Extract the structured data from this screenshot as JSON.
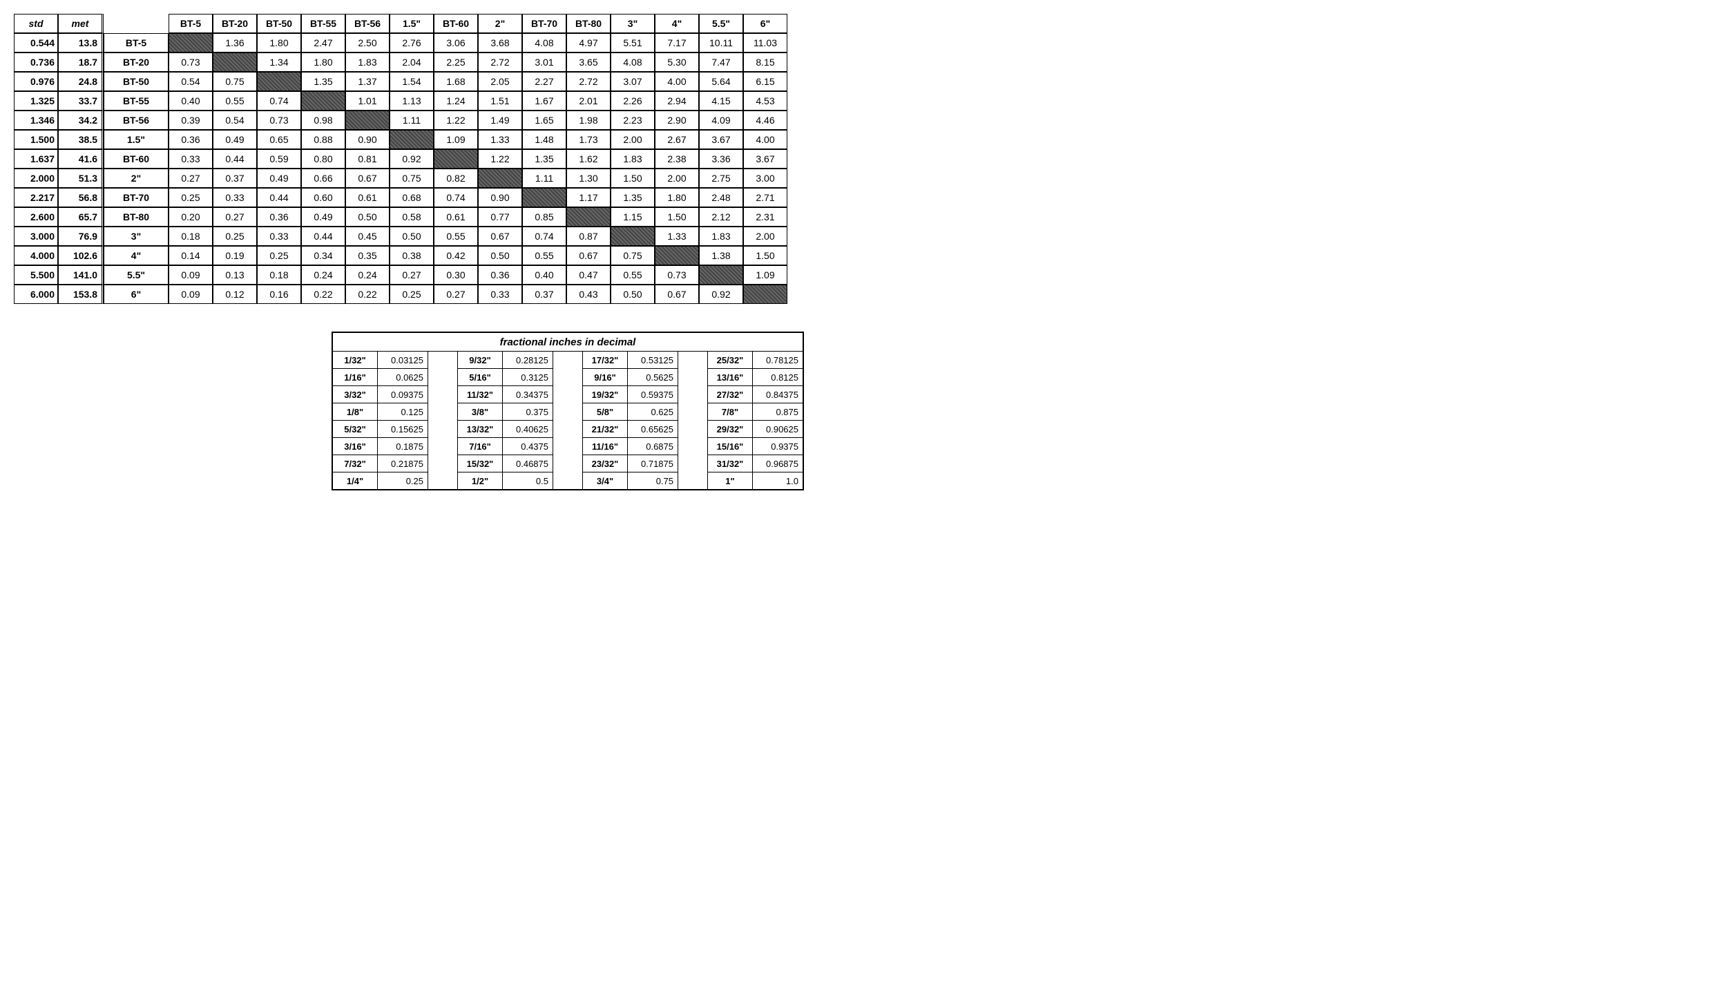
{
  "main": {
    "headers": {
      "std": "std",
      "met": "met",
      "cols": [
        "BT-5",
        "BT-20",
        "BT-50",
        "BT-55",
        "BT-56",
        "1.5\"",
        "BT-60",
        "2\"",
        "BT-70",
        "BT-80",
        "3\"",
        "4\"",
        "5.5\"",
        "6\""
      ]
    },
    "rows": [
      {
        "std": "0.544",
        "met": "13.8",
        "label": "BT-5",
        "vals": [
          null,
          "1.36",
          "1.80",
          "2.47",
          "2.50",
          "2.76",
          "3.06",
          "3.68",
          "4.08",
          "4.97",
          "5.51",
          "7.17",
          "10.11",
          "11.03"
        ]
      },
      {
        "std": "0.736",
        "met": "18.7",
        "label": "BT-20",
        "vals": [
          "0.73",
          null,
          "1.34",
          "1.80",
          "1.83",
          "2.04",
          "2.25",
          "2.72",
          "3.01",
          "3.65",
          "4.08",
          "5.30",
          "7.47",
          "8.15"
        ]
      },
      {
        "std": "0.976",
        "met": "24.8",
        "label": "BT-50",
        "vals": [
          "0.54",
          "0.75",
          null,
          "1.35",
          "1.37",
          "1.54",
          "1.68",
          "2.05",
          "2.27",
          "2.72",
          "3.07",
          "4.00",
          "5.64",
          "6.15"
        ]
      },
      {
        "std": "1.325",
        "met": "33.7",
        "label": "BT-55",
        "vals": [
          "0.40",
          "0.55",
          "0.74",
          null,
          "1.01",
          "1.13",
          "1.24",
          "1.51",
          "1.67",
          "2.01",
          "2.26",
          "2.94",
          "4.15",
          "4.53"
        ]
      },
      {
        "std": "1.346",
        "met": "34.2",
        "label": "BT-56",
        "vals": [
          "0.39",
          "0.54",
          "0.73",
          "0.98",
          null,
          "1.11",
          "1.22",
          "1.49",
          "1.65",
          "1.98",
          "2.23",
          "2.90",
          "4.09",
          "4.46"
        ]
      },
      {
        "std": "1.500",
        "met": "38.5",
        "label": "1.5\"",
        "vals": [
          "0.36",
          "0.49",
          "0.65",
          "0.88",
          "0.90",
          null,
          "1.09",
          "1.33",
          "1.48",
          "1.73",
          "2.00",
          "2.67",
          "3.67",
          "4.00"
        ]
      },
      {
        "std": "1.637",
        "met": "41.6",
        "label": "BT-60",
        "vals": [
          "0.33",
          "0.44",
          "0.59",
          "0.80",
          "0.81",
          "0.92",
          null,
          "1.22",
          "1.35",
          "1.62",
          "1.83",
          "2.38",
          "3.36",
          "3.67"
        ]
      },
      {
        "std": "2.000",
        "met": "51.3",
        "label": "2\"",
        "vals": [
          "0.27",
          "0.37",
          "0.49",
          "0.66",
          "0.67",
          "0.75",
          "0.82",
          null,
          "1.11",
          "1.30",
          "1.50",
          "2.00",
          "2.75",
          "3.00"
        ]
      },
      {
        "std": "2.217",
        "met": "56.8",
        "label": "BT-70",
        "vals": [
          "0.25",
          "0.33",
          "0.44",
          "0.60",
          "0.61",
          "0.68",
          "0.74",
          "0.90",
          null,
          "1.17",
          "1.35",
          "1.80",
          "2.48",
          "2.71"
        ]
      },
      {
        "std": "2.600",
        "met": "65.7",
        "label": "BT-80",
        "vals": [
          "0.20",
          "0.27",
          "0.36",
          "0.49",
          "0.50",
          "0.58",
          "0.61",
          "0.77",
          "0.85",
          null,
          "1.15",
          "1.50",
          "2.12",
          "2.31"
        ]
      },
      {
        "std": "3.000",
        "met": "76.9",
        "label": "3\"",
        "vals": [
          "0.18",
          "0.25",
          "0.33",
          "0.44",
          "0.45",
          "0.50",
          "0.55",
          "0.67",
          "0.74",
          "0.87",
          null,
          "1.33",
          "1.83",
          "2.00"
        ]
      },
      {
        "std": "4.000",
        "met": "102.6",
        "label": "4\"",
        "vals": [
          "0.14",
          "0.19",
          "0.25",
          "0.34",
          "0.35",
          "0.38",
          "0.42",
          "0.50",
          "0.55",
          "0.67",
          "0.75",
          null,
          "1.38",
          "1.50"
        ]
      },
      {
        "std": "5.500",
        "met": "141.0",
        "label": "5.5\"",
        "vals": [
          "0.09",
          "0.13",
          "0.18",
          "0.24",
          "0.24",
          "0.27",
          "0.30",
          "0.36",
          "0.40",
          "0.47",
          "0.55",
          "0.73",
          null,
          "1.09"
        ]
      },
      {
        "std": "6.000",
        "met": "153.8",
        "label": "6\"",
        "vals": [
          "0.09",
          "0.12",
          "0.16",
          "0.22",
          "0.22",
          "0.25",
          "0.27",
          "0.33",
          "0.37",
          "0.43",
          "0.50",
          "0.67",
          "0.92",
          null
        ]
      }
    ],
    "style": {
      "diag_color": "#555555",
      "border_color": "#000000",
      "background": "#ffffff",
      "font_size": 14
    }
  },
  "fractions": {
    "title": "fractional inches in decimal",
    "groups": [
      [
        {
          "f": "1/32\"",
          "d": "0.03125"
        },
        {
          "f": "1/16\"",
          "d": "0.0625"
        },
        {
          "f": "3/32\"",
          "d": "0.09375"
        },
        {
          "f": "1/8\"",
          "d": "0.125"
        },
        {
          "f": "5/32\"",
          "d": "0.15625"
        },
        {
          "f": "3/16\"",
          "d": "0.1875"
        },
        {
          "f": "7/32\"",
          "d": "0.21875"
        },
        {
          "f": "1/4\"",
          "d": "0.25"
        }
      ],
      [
        {
          "f": "9/32\"",
          "d": "0.28125"
        },
        {
          "f": "5/16\"",
          "d": "0.3125"
        },
        {
          "f": "11/32\"",
          "d": "0.34375"
        },
        {
          "f": "3/8\"",
          "d": "0.375"
        },
        {
          "f": "13/32\"",
          "d": "0.40625"
        },
        {
          "f": "7/16\"",
          "d": "0.4375"
        },
        {
          "f": "15/32\"",
          "d": "0.46875"
        },
        {
          "f": "1/2\"",
          "d": "0.5"
        }
      ],
      [
        {
          "f": "17/32\"",
          "d": "0.53125"
        },
        {
          "f": "9/16\"",
          "d": "0.5625"
        },
        {
          "f": "19/32\"",
          "d": "0.59375"
        },
        {
          "f": "5/8\"",
          "d": "0.625"
        },
        {
          "f": "21/32\"",
          "d": "0.65625"
        },
        {
          "f": "11/16\"",
          "d": "0.6875"
        },
        {
          "f": "23/32\"",
          "d": "0.71875"
        },
        {
          "f": "3/4\"",
          "d": "0.75"
        }
      ],
      [
        {
          "f": "25/32\"",
          "d": "0.78125"
        },
        {
          "f": "13/16\"",
          "d": "0.8125"
        },
        {
          "f": "27/32\"",
          "d": "0.84375"
        },
        {
          "f": "7/8\"",
          "d": "0.875"
        },
        {
          "f": "29/32\"",
          "d": "0.90625"
        },
        {
          "f": "15/16\"",
          "d": "0.9375"
        },
        {
          "f": "31/32\"",
          "d": "0.96875"
        },
        {
          "f": "1\"",
          "d": "1.0"
        }
      ]
    ]
  }
}
